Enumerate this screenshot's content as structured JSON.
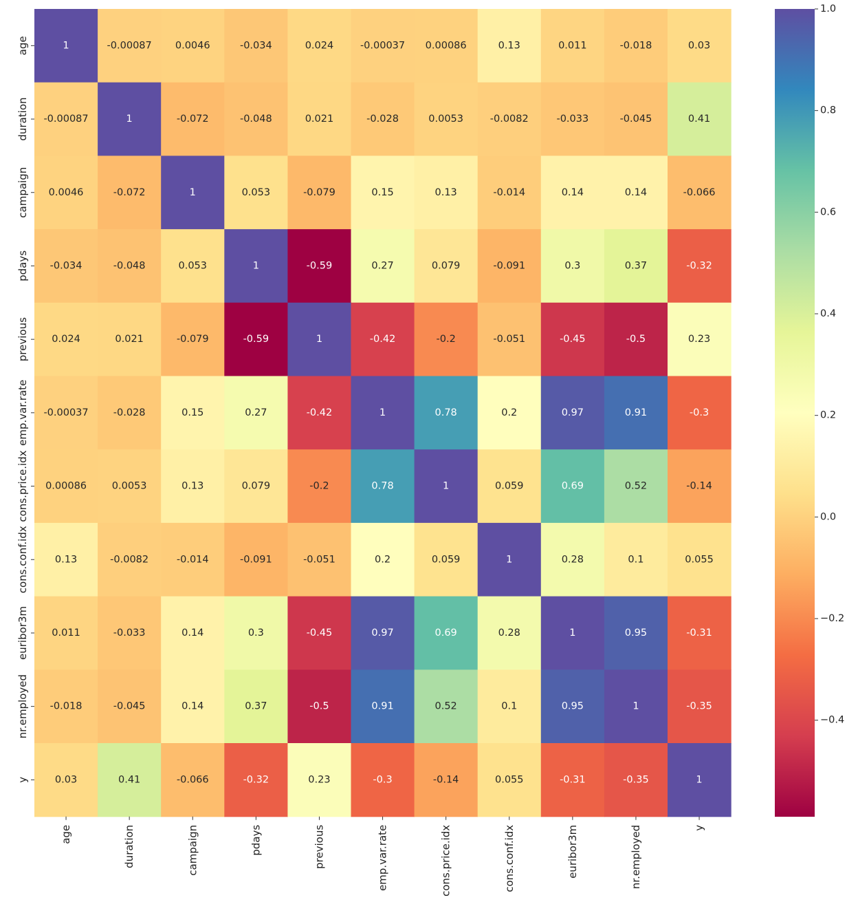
{
  "chart_data": {
    "type": "heatmap",
    "labels": [
      "age",
      "duration",
      "campaign",
      "pdays",
      "previous",
      "emp.var.rate",
      "cons.price.idx",
      "cons.conf.idx",
      "euribor3m",
      "nr.employed",
      "y"
    ],
    "matrix": [
      [
        1,
        -0.00087,
        0.0046,
        -0.034,
        0.024,
        -0.00037,
        0.00086,
        0.13,
        0.011,
        -0.018,
        0.03
      ],
      [
        -0.00087,
        1,
        -0.072,
        -0.048,
        0.021,
        -0.028,
        0.0053,
        -0.0082,
        -0.033,
        -0.045,
        0.41
      ],
      [
        0.0046,
        -0.072,
        1,
        0.053,
        -0.079,
        0.15,
        0.13,
        -0.014,
        0.14,
        0.14,
        -0.066
      ],
      [
        -0.034,
        -0.048,
        0.053,
        1,
        -0.59,
        0.27,
        0.079,
        -0.091,
        0.3,
        0.37,
        -0.32
      ],
      [
        0.024,
        0.021,
        -0.079,
        -0.59,
        1,
        -0.42,
        -0.2,
        -0.051,
        -0.45,
        -0.5,
        0.23
      ],
      [
        -0.00037,
        -0.028,
        0.15,
        0.27,
        -0.42,
        1,
        0.78,
        0.2,
        0.97,
        0.91,
        -0.3
      ],
      [
        0.00086,
        0.0053,
        0.13,
        0.079,
        -0.2,
        0.78,
        1,
        0.059,
        0.69,
        0.52,
        -0.14
      ],
      [
        0.13,
        -0.0082,
        -0.014,
        -0.091,
        -0.051,
        0.2,
        0.059,
        1,
        0.28,
        0.1,
        0.055
      ],
      [
        0.011,
        -0.033,
        0.14,
        0.3,
        -0.45,
        0.97,
        0.69,
        0.28,
        1,
        0.95,
        -0.31
      ],
      [
        -0.018,
        -0.045,
        0.14,
        0.37,
        -0.5,
        0.91,
        0.52,
        0.1,
        0.95,
        1,
        -0.35
      ],
      [
        0.03,
        0.41,
        -0.066,
        -0.32,
        0.23,
        -0.3,
        -0.14,
        0.055,
        -0.31,
        -0.35,
        1
      ]
    ],
    "annotations": [
      [
        "1",
        "-0.00087",
        "0.0046",
        "-0.034",
        "0.024",
        "-0.00037",
        "0.00086",
        "0.13",
        "0.011",
        "-0.018",
        "0.03"
      ],
      [
        "-0.00087",
        "1",
        "-0.072",
        "-0.048",
        "0.021",
        "-0.028",
        "0.0053",
        "-0.0082",
        "-0.033",
        "-0.045",
        "0.41"
      ],
      [
        "0.0046",
        "-0.072",
        "1",
        "0.053",
        "-0.079",
        "0.15",
        "0.13",
        "-0.014",
        "0.14",
        "0.14",
        "-0.066"
      ],
      [
        "-0.034",
        "-0.048",
        "0.053",
        "1",
        "-0.59",
        "0.27",
        "0.079",
        "-0.091",
        "0.3",
        "0.37",
        "-0.32"
      ],
      [
        "0.024",
        "0.021",
        "-0.079",
        "-0.59",
        "1",
        "-0.42",
        "-0.2",
        "-0.051",
        "-0.45",
        "-0.5",
        "0.23"
      ],
      [
        "-0.00037",
        "-0.028",
        "0.15",
        "0.27",
        "-0.42",
        "1",
        "0.78",
        "0.2",
        "0.97",
        "0.91",
        "-0.3"
      ],
      [
        "0.00086",
        "0.0053",
        "0.13",
        "0.079",
        "-0.2",
        "0.78",
        "1",
        "0.059",
        "0.69",
        "0.52",
        "-0.14"
      ],
      [
        "0.13",
        "-0.0082",
        "-0.014",
        "-0.091",
        "-0.051",
        "0.2",
        "0.059",
        "1",
        "0.28",
        "0.1",
        "0.055"
      ],
      [
        "0.011",
        "-0.033",
        "0.14",
        "0.3",
        "-0.45",
        "0.97",
        "0.69",
        "0.28",
        "1",
        "0.95",
        "-0.31"
      ],
      [
        "-0.018",
        "-0.045",
        "0.14",
        "0.37",
        "-0.5",
        "0.91",
        "0.52",
        "0.1",
        "0.95",
        "1",
        "-0.35"
      ],
      [
        "0.03",
        "0.41",
        "-0.066",
        "-0.32",
        "0.23",
        "-0.3",
        "-0.14",
        "0.055",
        "-0.31",
        "-0.35",
        "1"
      ]
    ],
    "colormap": "Spectral",
    "colormap_stops": [
      "#9e0142",
      "#d53e4f",
      "#f46d43",
      "#fdae61",
      "#fee08b",
      "#ffffbf",
      "#e6f598",
      "#abdda4",
      "#66c2a5",
      "#3288bd",
      "#5e4fa2"
    ],
    "vmin": -0.59,
    "vmax": 1,
    "colorbar_ticks": [
      1.0,
      0.8,
      0.6,
      0.4,
      0.2,
      0.0,
      -0.2,
      -0.4
    ],
    "colorbar_tick_labels": [
      "1.0",
      "0.8",
      "0.6",
      "0.4",
      "0.2",
      "0.0",
      "−0.2",
      "−0.4"
    ],
    "colorbar_placement": "right",
    "title": "",
    "xlabel": "",
    "ylabel": "",
    "grid": false
  }
}
